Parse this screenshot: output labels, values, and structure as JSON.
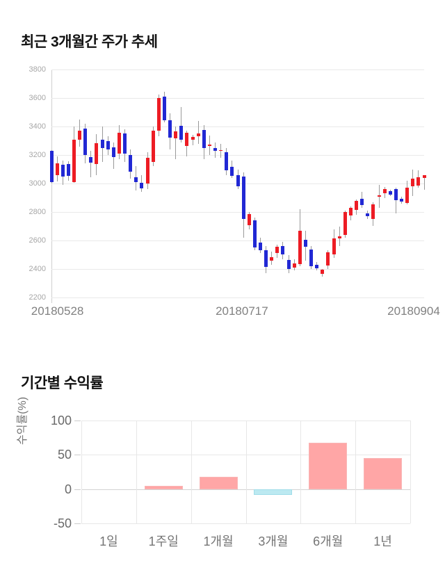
{
  "chart_data": [
    {
      "type": "candlestick",
      "title": "최근 3개월간 주가 추세",
      "ylim": [
        2200,
        3800
      ],
      "y_ticks": [
        3800,
        3600,
        3400,
        3200,
        3000,
        2800,
        2600,
        2400,
        2200
      ],
      "x_tick_labels": [
        "20180528",
        "20180717",
        "20180904"
      ],
      "grid": "horizontal",
      "legend": "none",
      "colors": {
        "bullish": "#ed1c24",
        "bearish": "#2128d4",
        "wick": "#999999",
        "grid": "#e9e9e9",
        "axis": "#cfcfcf"
      },
      "candles_ohlc": [
        [
          3230,
          3235,
          3000,
          3010
        ],
        [
          3060,
          3190,
          3015,
          3140
        ],
        [
          3130,
          3160,
          2990,
          3050
        ],
        [
          3135,
          3155,
          3020,
          3055
        ],
        [
          3010,
          3400,
          3005,
          3305
        ],
        [
          3305,
          3450,
          3260,
          3370
        ],
        [
          3385,
          3420,
          3140,
          3200
        ],
        [
          3185,
          3230,
          3045,
          3145
        ],
        [
          3135,
          3345,
          3060,
          3285
        ],
        [
          3305,
          3400,
          3150,
          3250
        ],
        [
          3300,
          3330,
          3200,
          3240
        ],
        [
          3255,
          3290,
          3100,
          3185
        ],
        [
          3210,
          3410,
          3170,
          3355
        ],
        [
          3350,
          3380,
          3150,
          3210
        ],
        [
          3200,
          3240,
          3035,
          3085
        ],
        [
          3045,
          3120,
          2950,
          3010
        ],
        [
          3005,
          3060,
          2940,
          2965
        ],
        [
          3000,
          3220,
          2960,
          3180
        ],
        [
          3150,
          3400,
          3120,
          3370
        ],
        [
          3370,
          3625,
          3330,
          3600
        ],
        [
          3610,
          3645,
          3430,
          3445
        ],
        [
          3445,
          3495,
          3240,
          3320
        ],
        [
          3315,
          3400,
          3170,
          3365
        ],
        [
          3405,
          3535,
          3290,
          3305
        ],
        [
          3265,
          3370,
          3190,
          3355
        ],
        [
          3305,
          3340,
          3270,
          3325
        ],
        [
          3330,
          3440,
          3280,
          3350
        ],
        [
          3375,
          3410,
          3170,
          3250
        ],
        [
          3265,
          3335,
          3200,
          3275
        ],
        [
          3250,
          3290,
          3180,
          3230
        ],
        [
          3228,
          3280,
          3180,
          3236
        ],
        [
          3220,
          3250,
          3060,
          3095
        ],
        [
          3115,
          3160,
          3040,
          3055
        ],
        [
          3060,
          3100,
          2960,
          2980
        ],
        [
          3050,
          3080,
          2620,
          2750
        ],
        [
          2705,
          2800,
          2680,
          2785
        ],
        [
          2740,
          2760,
          2530,
          2550
        ],
        [
          2585,
          2620,
          2510,
          2530
        ],
        [
          2530,
          2560,
          2370,
          2415
        ],
        [
          2460,
          2520,
          2430,
          2485
        ],
        [
          2510,
          2570,
          2480,
          2555
        ],
        [
          2560,
          2590,
          2470,
          2500
        ],
        [
          2465,
          2500,
          2370,
          2400
        ],
        [
          2410,
          2470,
          2390,
          2440
        ],
        [
          2435,
          2820,
          2420,
          2670
        ],
        [
          2605,
          2670,
          2460,
          2555
        ],
        [
          2535,
          2560,
          2400,
          2420
        ],
        [
          2430,
          2450,
          2390,
          2405
        ],
        [
          2365,
          2400,
          2345,
          2395
        ],
        [
          2425,
          2530,
          2400,
          2515
        ],
        [
          2500,
          2680,
          2480,
          2615
        ],
        [
          2615,
          2700,
          2560,
          2630
        ],
        [
          2640,
          2810,
          2620,
          2800
        ],
        [
          2775,
          2840,
          2740,
          2830
        ],
        [
          2815,
          2890,
          2780,
          2880
        ],
        [
          2895,
          2940,
          2830,
          2850
        ],
        [
          2790,
          2810,
          2750,
          2770
        ],
        [
          2750,
          2870,
          2700,
          2855
        ],
        [
          2905,
          2990,
          2830,
          2915
        ],
        [
          2930,
          2975,
          2900,
          2960
        ],
        [
          2945,
          2955,
          2910,
          2920
        ],
        [
          2960,
          2970,
          2790,
          2885
        ],
        [
          2892,
          2905,
          2860,
          2873
        ],
        [
          2865,
          3020,
          2855,
          2970
        ],
        [
          2980,
          3100,
          2910,
          3035
        ],
        [
          2985,
          3095,
          2970,
          3045
        ],
        [
          3040,
          3060,
          2955,
          3058
        ]
      ]
    },
    {
      "type": "bar",
      "title": "기간별 수익률",
      "ylabel": "수익률(%)",
      "categories": [
        "1일",
        "1주일",
        "1개월",
        "3개월",
        "6개월",
        "1년"
      ],
      "values": [
        0,
        5,
        18,
        -8,
        68,
        45
      ],
      "ylim": [
        -50,
        100
      ],
      "y_ticks": [
        100,
        50,
        0,
        -50
      ],
      "grid": "both",
      "legend": "none",
      "colors": {
        "positive": "#ffa6a6",
        "positive_border": "#f9b6b6",
        "negative": "#bce9f1",
        "negative_border": "#9fdde9"
      }
    }
  ]
}
